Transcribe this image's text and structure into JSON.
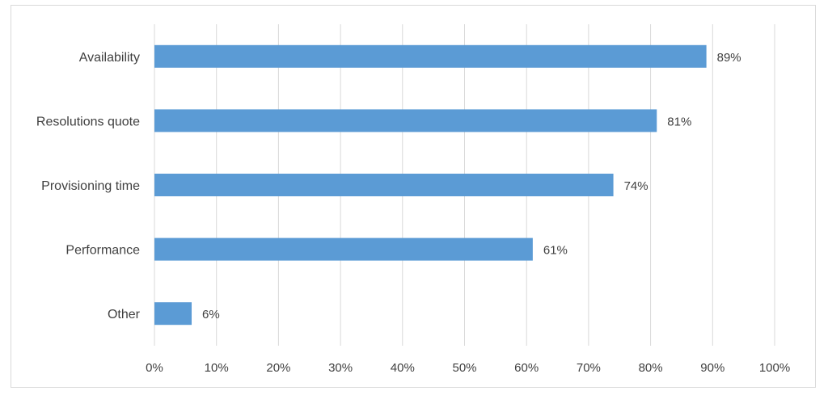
{
  "chart_data": {
    "type": "bar",
    "orientation": "horizontal",
    "categories": [
      "Availability",
      "Resolutions quote",
      "Provisioning time",
      "Performance",
      "Other"
    ],
    "values": [
      89,
      81,
      74,
      61,
      6
    ],
    "value_labels": [
      "89%",
      "81%",
      "74%",
      "61%",
      "6%"
    ],
    "xlim": [
      0,
      100
    ],
    "x_ticks": [
      0,
      10,
      20,
      30,
      40,
      50,
      60,
      70,
      80,
      90,
      100
    ],
    "x_tick_labels": [
      "0%",
      "10%",
      "20%",
      "30%",
      "40%",
      "50%",
      "60%",
      "70%",
      "80%",
      "90%",
      "100%"
    ],
    "grid": "vertical",
    "legend": "none",
    "bar_color": "#5b9bd5",
    "grid_color": "#d9d9d9"
  }
}
